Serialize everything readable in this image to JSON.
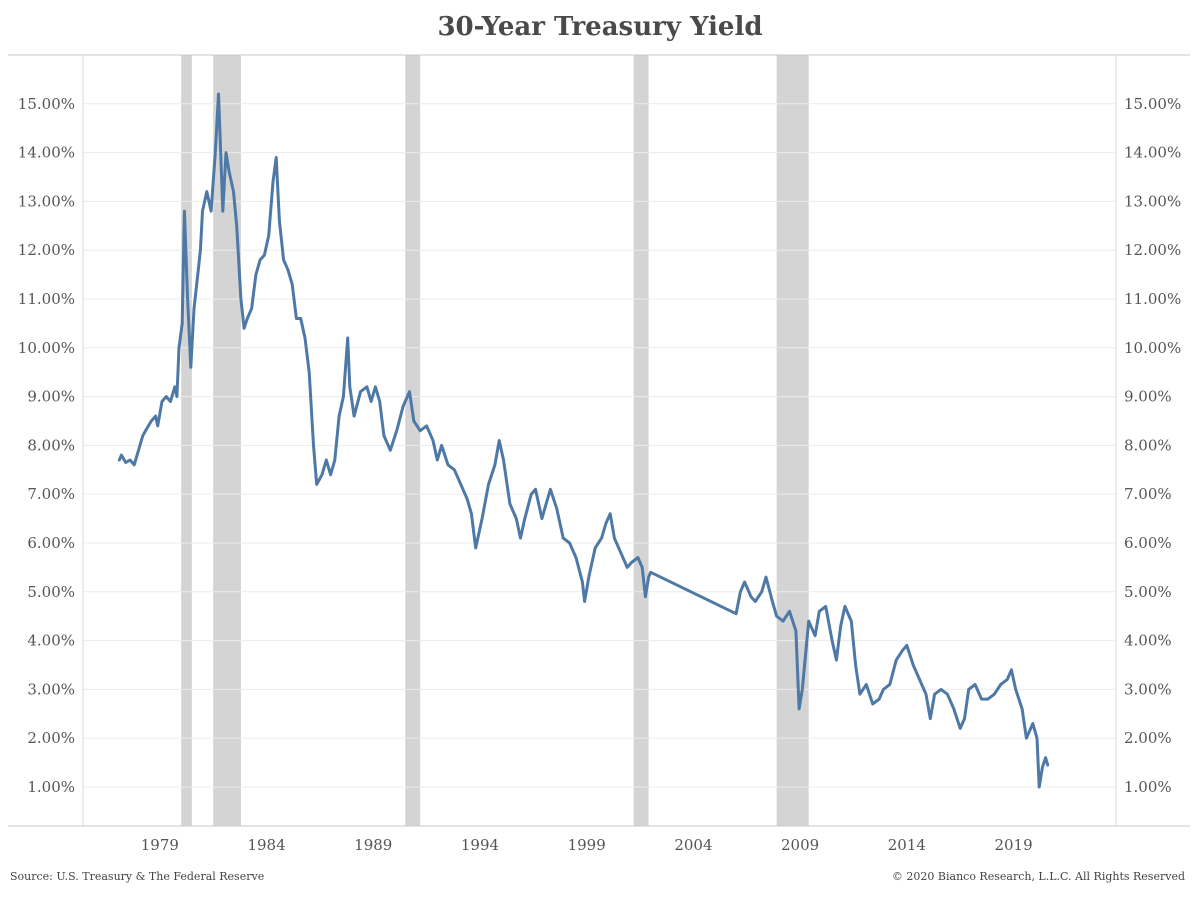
{
  "chart_data": {
    "type": "line",
    "title": "30-Year Treasury Yield",
    "xlabel": "",
    "ylabel": "",
    "xlim": [
      1975.4,
      2023.8
    ],
    "ylim": [
      0.2,
      16.0
    ],
    "x_ticks": [
      1979,
      1984,
      1989,
      1994,
      1999,
      2004,
      2009,
      2014,
      2019
    ],
    "y_ticks": [
      1,
      2,
      3,
      4,
      5,
      6,
      7,
      8,
      9,
      10,
      11,
      12,
      13,
      14,
      15
    ],
    "y_tick_labels": [
      "1.00%",
      "2.00%",
      "3.00%",
      "4.00%",
      "5.00%",
      "6.00%",
      "7.00%",
      "8.00%",
      "9.00%",
      "10.00%",
      "11.00%",
      "12.00%",
      "13.00%",
      "14.00%",
      "15.00%"
    ],
    "grid": true,
    "line_color": "#4e79a7",
    "recession_color": "#d4d4d4",
    "recessions": [
      {
        "start": 1980.0,
        "end": 1980.5
      },
      {
        "start": 1981.5,
        "end": 1982.8
      },
      {
        "start": 1990.5,
        "end": 1991.2
      },
      {
        "start": 2001.2,
        "end": 2001.9
      },
      {
        "start": 2007.9,
        "end": 2009.4
      }
    ],
    "series": [
      {
        "values": [
          [
            1977.1,
            7.7
          ],
          [
            1977.2,
            7.8
          ],
          [
            1977.4,
            7.65
          ],
          [
            1977.6,
            7.7
          ],
          [
            1977.8,
            7.6
          ],
          [
            1978.0,
            7.9
          ],
          [
            1978.2,
            8.2
          ],
          [
            1978.4,
            8.35
          ],
          [
            1978.6,
            8.5
          ],
          [
            1978.8,
            8.6
          ],
          [
            1978.9,
            8.4
          ],
          [
            1979.1,
            8.9
          ],
          [
            1979.3,
            9.0
          ],
          [
            1979.5,
            8.9
          ],
          [
            1979.7,
            9.2
          ],
          [
            1979.8,
            9.0
          ],
          [
            1979.9,
            10.0
          ],
          [
            1980.05,
            10.5
          ],
          [
            1980.15,
            12.8
          ],
          [
            1980.3,
            11.0
          ],
          [
            1980.45,
            9.6
          ],
          [
            1980.6,
            10.8
          ],
          [
            1980.8,
            11.6
          ],
          [
            1980.9,
            12.0
          ],
          [
            1981.0,
            12.8
          ],
          [
            1981.2,
            13.2
          ],
          [
            1981.4,
            12.8
          ],
          [
            1981.6,
            14.0
          ],
          [
            1981.75,
            15.2
          ],
          [
            1981.85,
            14.0
          ],
          [
            1981.95,
            12.8
          ],
          [
            1982.1,
            14.0
          ],
          [
            1982.25,
            13.6
          ],
          [
            1982.45,
            13.2
          ],
          [
            1982.6,
            12.5
          ],
          [
            1982.8,
            11.0
          ],
          [
            1982.95,
            10.4
          ],
          [
            1983.1,
            10.6
          ],
          [
            1983.3,
            10.8
          ],
          [
            1983.5,
            11.5
          ],
          [
            1983.7,
            11.8
          ],
          [
            1983.9,
            11.9
          ],
          [
            1984.1,
            12.3
          ],
          [
            1984.3,
            13.4
          ],
          [
            1984.45,
            13.9
          ],
          [
            1984.6,
            12.6
          ],
          [
            1984.8,
            11.8
          ],
          [
            1985.0,
            11.6
          ],
          [
            1985.2,
            11.3
          ],
          [
            1985.4,
            10.6
          ],
          [
            1985.6,
            10.6
          ],
          [
            1985.8,
            10.2
          ],
          [
            1986.0,
            9.5
          ],
          [
            1986.2,
            8.0
          ],
          [
            1986.35,
            7.2
          ],
          [
            1986.6,
            7.4
          ],
          [
            1986.8,
            7.7
          ],
          [
            1987.0,
            7.4
          ],
          [
            1987.2,
            7.7
          ],
          [
            1987.4,
            8.6
          ],
          [
            1987.6,
            9.0
          ],
          [
            1987.8,
            10.2
          ],
          [
            1987.9,
            9.2
          ],
          [
            1988.1,
            8.6
          ],
          [
            1988.4,
            9.1
          ],
          [
            1988.7,
            9.2
          ],
          [
            1988.9,
            8.9
          ],
          [
            1989.1,
            9.2
          ],
          [
            1989.3,
            8.9
          ],
          [
            1989.5,
            8.2
          ],
          [
            1989.8,
            7.9
          ],
          [
            1990.1,
            8.3
          ],
          [
            1990.4,
            8.8
          ],
          [
            1990.7,
            9.1
          ],
          [
            1990.9,
            8.5
          ],
          [
            1991.2,
            8.3
          ],
          [
            1991.5,
            8.4
          ],
          [
            1991.8,
            8.1
          ],
          [
            1992.0,
            7.7
          ],
          [
            1992.2,
            8.0
          ],
          [
            1992.5,
            7.6
          ],
          [
            1992.8,
            7.5
          ],
          [
            1993.1,
            7.2
          ],
          [
            1993.4,
            6.9
          ],
          [
            1993.6,
            6.6
          ],
          [
            1993.8,
            5.9
          ],
          [
            1994.1,
            6.5
          ],
          [
            1994.4,
            7.2
          ],
          [
            1994.7,
            7.6
          ],
          [
            1994.9,
            8.1
          ],
          [
            1995.1,
            7.7
          ],
          [
            1995.4,
            6.8
          ],
          [
            1995.7,
            6.5
          ],
          [
            1995.9,
            6.1
          ],
          [
            1996.1,
            6.5
          ],
          [
            1996.4,
            7.0
          ],
          [
            1996.6,
            7.1
          ],
          [
            1996.9,
            6.5
          ],
          [
            1997.1,
            6.8
          ],
          [
            1997.3,
            7.1
          ],
          [
            1997.6,
            6.7
          ],
          [
            1997.9,
            6.1
          ],
          [
            1998.2,
            6.0
          ],
          [
            1998.5,
            5.7
          ],
          [
            1998.8,
            5.2
          ],
          [
            1998.9,
            4.8
          ],
          [
            1999.1,
            5.3
          ],
          [
            1999.4,
            5.9
          ],
          [
            1999.7,
            6.1
          ],
          [
            1999.9,
            6.4
          ],
          [
            2000.1,
            6.6
          ],
          [
            2000.3,
            6.1
          ],
          [
            2000.6,
            5.8
          ],
          [
            2000.9,
            5.5
          ],
          [
            2001.1,
            5.6
          ],
          [
            2001.4,
            5.7
          ],
          [
            2001.6,
            5.5
          ],
          [
            2001.75,
            4.9
          ],
          [
            2001.9,
            5.3
          ],
          [
            2002.0,
            5.4
          ],
          [
            2006.0,
            4.55
          ],
          [
            2006.2,
            5.0
          ],
          [
            2006.4,
            5.2
          ],
          [
            2006.7,
            4.9
          ],
          [
            2006.9,
            4.8
          ],
          [
            2007.2,
            5.0
          ],
          [
            2007.4,
            5.3
          ],
          [
            2007.7,
            4.8
          ],
          [
            2007.9,
            4.5
          ],
          [
            2008.2,
            4.4
          ],
          [
            2008.5,
            4.6
          ],
          [
            2008.8,
            4.2
          ],
          [
            2008.95,
            2.6
          ],
          [
            2009.1,
            3.0
          ],
          [
            2009.4,
            4.4
          ],
          [
            2009.7,
            4.1
          ],
          [
            2009.9,
            4.6
          ],
          [
            2010.2,
            4.7
          ],
          [
            2010.5,
            4.0
          ],
          [
            2010.7,
            3.6
          ],
          [
            2010.9,
            4.3
          ],
          [
            2011.1,
            4.7
          ],
          [
            2011.4,
            4.4
          ],
          [
            2011.6,
            3.5
          ],
          [
            2011.8,
            2.9
          ],
          [
            2012.1,
            3.1
          ],
          [
            2012.4,
            2.7
          ],
          [
            2012.7,
            2.8
          ],
          [
            2012.9,
            3.0
          ],
          [
            2013.2,
            3.1
          ],
          [
            2013.5,
            3.6
          ],
          [
            2013.8,
            3.8
          ],
          [
            2014.0,
            3.9
          ],
          [
            2014.3,
            3.5
          ],
          [
            2014.6,
            3.2
          ],
          [
            2014.9,
            2.9
          ],
          [
            2015.1,
            2.4
          ],
          [
            2015.3,
            2.9
          ],
          [
            2015.6,
            3.0
          ],
          [
            2015.9,
            2.9
          ],
          [
            2016.2,
            2.6
          ],
          [
            2016.5,
            2.2
          ],
          [
            2016.7,
            2.4
          ],
          [
            2016.9,
            3.0
          ],
          [
            2017.2,
            3.1
          ],
          [
            2017.5,
            2.8
          ],
          [
            2017.8,
            2.8
          ],
          [
            2018.1,
            2.9
          ],
          [
            2018.4,
            3.1
          ],
          [
            2018.7,
            3.2
          ],
          [
            2018.9,
            3.4
          ],
          [
            2019.1,
            3.0
          ],
          [
            2019.4,
            2.6
          ],
          [
            2019.6,
            2.0
          ],
          [
            2019.9,
            2.3
          ],
          [
            2020.1,
            2.0
          ],
          [
            2020.2,
            1.0
          ],
          [
            2020.35,
            1.4
          ],
          [
            2020.5,
            1.6
          ],
          [
            2020.6,
            1.45
          ]
        ]
      }
    ]
  },
  "footer": {
    "source": "Source: U.S. Treasury & The Federal Reserve",
    "copyright": "© 2020 Bianco Research, L.L.C. All Rights Reserved"
  }
}
